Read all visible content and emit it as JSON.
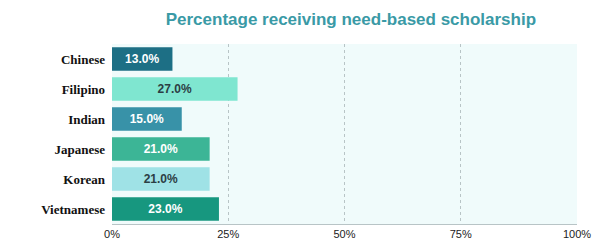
{
  "chart_data": {
    "type": "bar",
    "orientation": "horizontal",
    "title": "Percentage receiving need-based scholarship",
    "categories": [
      "Chinese",
      "Filipino",
      "Indian",
      "Japanese",
      "Korean",
      "Vietnamese"
    ],
    "values": [
      13,
      27,
      15,
      21,
      21,
      23
    ],
    "value_labels": [
      "13.0%",
      "27.0%",
      "15.0%",
      "21.0%",
      "21.0%",
      "23.0%"
    ],
    "colors": [
      "#1d6f85",
      "#7fe6d0",
      "#3892a8",
      "#3cb596",
      "#9fe2e6",
      "#17977f"
    ],
    "xlim": [
      0,
      100
    ],
    "xticks": [
      {
        "value": 0,
        "label": "0%"
      },
      {
        "value": 25,
        "label": "25%"
      },
      {
        "value": 50,
        "label": "50%"
      },
      {
        "value": 75,
        "label": "75%"
      },
      {
        "value": 100,
        "label": "100%"
      }
    ],
    "grid": true,
    "data_labels": true
  }
}
